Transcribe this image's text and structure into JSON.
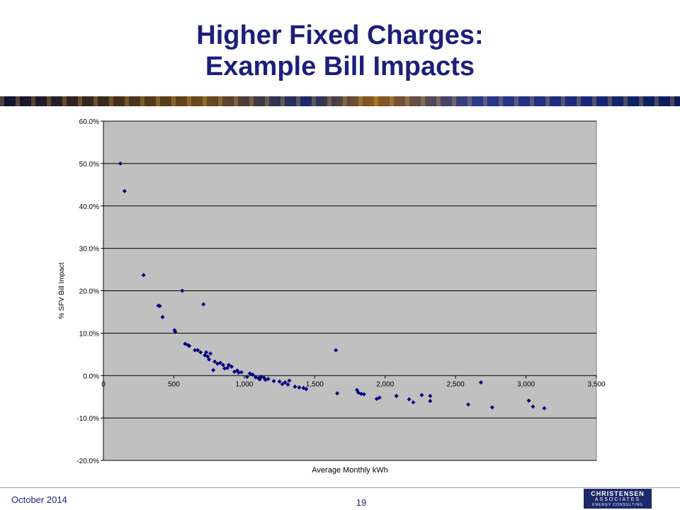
{
  "slide": {
    "title_line1": "Higher Fixed Charges:",
    "title_line2": "Example Bill Impacts",
    "date": "October 2014",
    "page_number": "19",
    "logo": {
      "line1": "CHRISTENSEN",
      "line2": "ASSOCIATES",
      "line3": "ENERGY CONSULTING"
    }
  },
  "colors": {
    "title": "#1c1f7a",
    "plot_bg": "#c0c0c0",
    "marker": "#000080",
    "zero_line": "#000000"
  },
  "chart_data": {
    "type": "scatter",
    "title": "",
    "xlabel": "Average Monthly kWh",
    "ylabel": "% SFV Bill Impact",
    "xlim": [
      0,
      3500
    ],
    "ylim": [
      -20,
      60
    ],
    "x_ticks": [
      0,
      500,
      1000,
      1500,
      2000,
      2500,
      3000,
      3500
    ],
    "x_tick_labels": [
      "0",
      "500",
      "1,000",
      "1,500",
      "2,000",
      "2,500",
      "3,000",
      "3,500"
    ],
    "y_ticks": [
      60,
      50,
      40,
      30,
      20,
      10,
      0,
      -10,
      -20
    ],
    "y_tick_labels": [
      "60.0%",
      "50.0%",
      "40.0%",
      "30.0%",
      "20.0%",
      "10.0%",
      "0.0%",
      "-10.0%",
      "-20.0%"
    ],
    "grid": "horizontal",
    "legend": "none",
    "points": [
      [
        120,
        50.0
      ],
      [
        150,
        43.5
      ],
      [
        285,
        23.7
      ],
      [
        390,
        16.5
      ],
      [
        400,
        16.4
      ],
      [
        420,
        13.8
      ],
      [
        505,
        10.7
      ],
      [
        510,
        10.3
      ],
      [
        560,
        20.0
      ],
      [
        580,
        7.5
      ],
      [
        600,
        7.2
      ],
      [
        610,
        7.0
      ],
      [
        650,
        6.0
      ],
      [
        670,
        6.0
      ],
      [
        690,
        5.5
      ],
      [
        710,
        16.8
      ],
      [
        720,
        4.8
      ],
      [
        730,
        5.5
      ],
      [
        740,
        4.5
      ],
      [
        750,
        3.8
      ],
      [
        760,
        5.2
      ],
      [
        780,
        1.3
      ],
      [
        790,
        3.3
      ],
      [
        810,
        2.8
      ],
      [
        830,
        3.0
      ],
      [
        850,
        2.5
      ],
      [
        860,
        1.7
      ],
      [
        880,
        1.8
      ],
      [
        890,
        2.5
      ],
      [
        910,
        2.1
      ],
      [
        930,
        0.9
      ],
      [
        950,
        1.2
      ],
      [
        960,
        0.7
      ],
      [
        980,
        0.8
      ],
      [
        1020,
        -0.3
      ],
      [
        1040,
        0.5
      ],
      [
        1060,
        0.2
      ],
      [
        1080,
        -0.4
      ],
      [
        1100,
        -0.6
      ],
      [
        1110,
        -0.9
      ],
      [
        1120,
        -0.3
      ],
      [
        1140,
        -0.5
      ],
      [
        1150,
        -1.0
      ],
      [
        1170,
        -0.8
      ],
      [
        1210,
        -1.3
      ],
      [
        1250,
        -1.4
      ],
      [
        1270,
        -2.0
      ],
      [
        1290,
        -1.6
      ],
      [
        1310,
        -2.1
      ],
      [
        1320,
        -1.2
      ],
      [
        1360,
        -2.6
      ],
      [
        1390,
        -2.8
      ],
      [
        1420,
        -2.9
      ],
      [
        1440,
        -3.2
      ],
      [
        1650,
        6.0
      ],
      [
        1660,
        -4.2
      ],
      [
        1800,
        -3.4
      ],
      [
        1810,
        -4.0
      ],
      [
        1830,
        -4.3
      ],
      [
        1850,
        -4.4
      ],
      [
        1940,
        -5.5
      ],
      [
        1960,
        -5.2
      ],
      [
        2080,
        -4.8
      ],
      [
        2170,
        -5.6
      ],
      [
        2200,
        -6.3
      ],
      [
        2260,
        -4.6
      ],
      [
        2320,
        -4.8
      ],
      [
        2320,
        -6.0
      ],
      [
        2590,
        -6.8
      ],
      [
        2680,
        -1.6
      ],
      [
        2760,
        -7.5
      ],
      [
        3020,
        -5.9
      ],
      [
        3050,
        -7.3
      ],
      [
        3130,
        -7.7
      ]
    ]
  }
}
